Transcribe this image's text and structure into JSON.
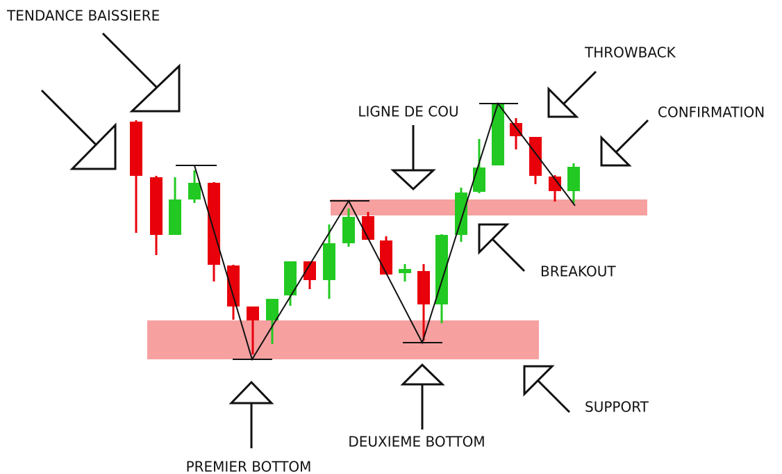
{
  "labels": {
    "trend": "TENDANCE BAISSIERE",
    "throwback": "THROWBACK",
    "neckline": "LIGNE DE COU",
    "confirmation": "CONFIRMATION",
    "breakout": "BREAKOUT",
    "support": "SUPPORT",
    "first_bottom": "PREMIER BOTTOM",
    "second_bottom": "DEUXIEME BOTTOM"
  }
}
